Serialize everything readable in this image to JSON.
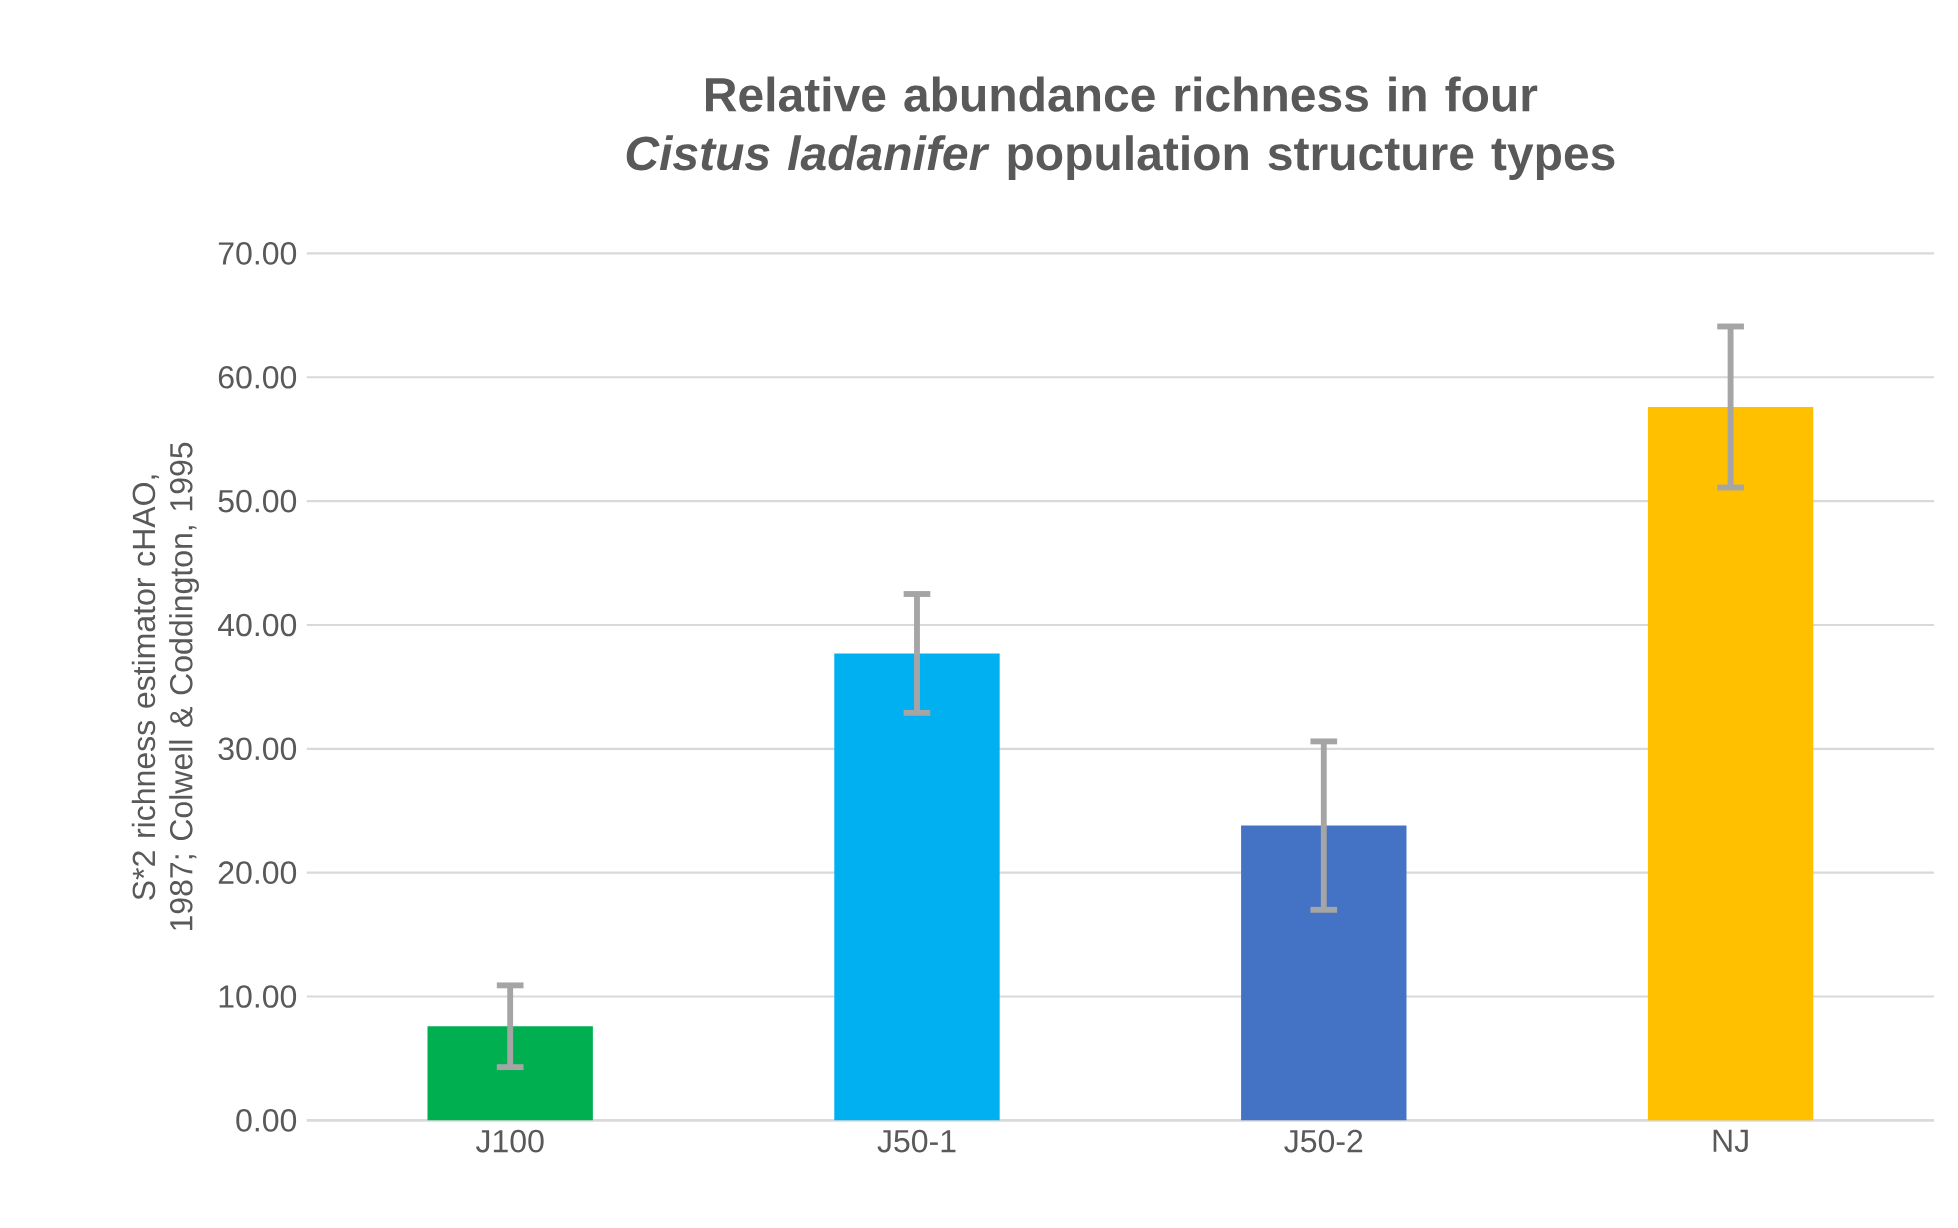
{
  "chart_data": {
    "type": "bar",
    "title": "Relative abundance richness in four *Cistus ladanifer* population structure types",
    "ylabel": "S*2 richness estimator cHAO, 1987; Colwell & Coddington, 1995",
    "categories": [
      "J100",
      "J50-1",
      "J50-2",
      "NJ"
    ],
    "values": [
      7.6,
      37.7,
      23.8,
      57.6
    ],
    "errors": [
      3.3,
      4.8,
      6.8,
      6.5
    ],
    "colors": [
      "#00b050",
      "#00b0f0",
      "#4472c4",
      "#ffc000"
    ],
    "ylim": [
      0,
      70
    ],
    "yticks": [
      {
        "value": 0,
        "label": "0.00"
      },
      {
        "value": 10,
        "label": "10.00"
      },
      {
        "value": 20,
        "label": "20.00"
      },
      {
        "value": 30,
        "label": "30.00"
      },
      {
        "value": 40,
        "label": "40.00"
      },
      {
        "value": 50,
        "label": "50.00"
      },
      {
        "value": 60,
        "label": "60.00"
      },
      {
        "value": 70,
        "label": "70.00"
      }
    ],
    "grid": "y"
  }
}
